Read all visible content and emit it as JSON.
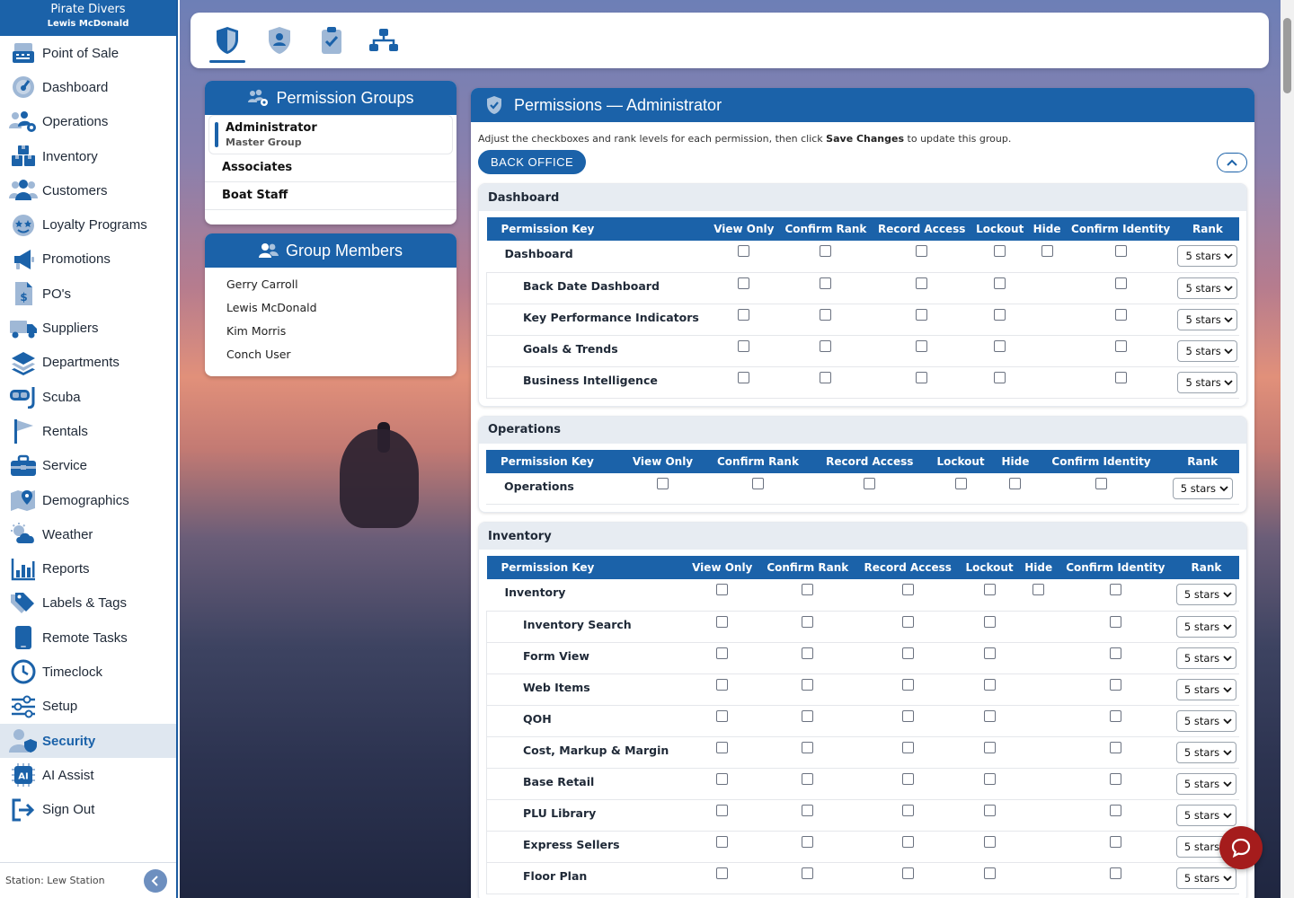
{
  "sidebar": {
    "org": "Pirate Divers",
    "user": "Lewis McDonald",
    "items": [
      {
        "label": "Point of Sale",
        "icon": "register-icon"
      },
      {
        "label": "Dashboard",
        "icon": "gauge-icon"
      },
      {
        "label": "Operations",
        "icon": "team-gear-icon"
      },
      {
        "label": "Inventory",
        "icon": "boxes-icon"
      },
      {
        "label": "Customers",
        "icon": "people-icon"
      },
      {
        "label": "Loyalty Programs",
        "icon": "star-face-icon"
      },
      {
        "label": "Promotions",
        "icon": "megaphone-icon"
      },
      {
        "label": "PO's",
        "icon": "invoice-icon"
      },
      {
        "label": "Suppliers",
        "icon": "truck-icon"
      },
      {
        "label": "Departments",
        "icon": "layers-icon"
      },
      {
        "label": "Scuba",
        "icon": "snorkel-mask-icon"
      },
      {
        "label": "Rentals",
        "icon": "flag-icon"
      },
      {
        "label": "Service",
        "icon": "toolbox-icon"
      },
      {
        "label": "Demographics",
        "icon": "map-pin-icon"
      },
      {
        "label": "Weather",
        "icon": "cloud-sun-icon"
      },
      {
        "label": "Reports",
        "icon": "bar-chart-icon"
      },
      {
        "label": "Labels & Tags",
        "icon": "tag-icon"
      },
      {
        "label": "Remote Tasks",
        "icon": "tablet-icon"
      },
      {
        "label": "Timeclock",
        "icon": "clock-icon"
      },
      {
        "label": "Setup",
        "icon": "sliders-icon"
      },
      {
        "label": "Security",
        "icon": "user-shield-icon",
        "active": true
      },
      {
        "label": "AI Assist",
        "icon": "ai-chip-icon"
      },
      {
        "label": "Sign Out",
        "icon": "sign-out-icon"
      }
    ],
    "station": "Station: Lew Station"
  },
  "tabs": [
    {
      "name": "security-shield-tab",
      "active": true
    },
    {
      "name": "user-shield-tab"
    },
    {
      "name": "clipboard-check-tab"
    },
    {
      "name": "network-tab"
    }
  ],
  "groups_panel": {
    "title": "Permission Groups",
    "groups": [
      {
        "name": "Administrator",
        "sub": "Master Group",
        "selected": true
      },
      {
        "name": "Associates"
      },
      {
        "name": "Boat Staff"
      }
    ]
  },
  "members_panel": {
    "title": "Group Members",
    "members": [
      "Gerry Carroll",
      "Lewis McDonald",
      "Kim Morris",
      "Conch User"
    ]
  },
  "permissions": {
    "title": "Permissions — Administrator",
    "desc_before": "Adjust the checkboxes and rank levels for each permission, then click ",
    "desc_bold": "Save Changes",
    "desc_after": " to update this group.",
    "back_office": "BACK OFFICE",
    "columns": [
      "Permission Key",
      "View Only",
      "Confirm Rank",
      "Record Access",
      "Lockout",
      "Hide",
      "Confirm Identity",
      "Rank"
    ],
    "rank_value": "5 stars",
    "sections": [
      {
        "title": "Dashboard",
        "rows": [
          {
            "key": "Dashboard",
            "parent": true
          },
          {
            "key": "Back Date Dashboard"
          },
          {
            "key": "Key Performance Indicators"
          },
          {
            "key": "Goals & Trends"
          },
          {
            "key": "Business Intelligence"
          }
        ]
      },
      {
        "title": "Operations",
        "rows": [
          {
            "key": "Operations",
            "parent": true
          }
        ]
      },
      {
        "title": "Inventory",
        "rows": [
          {
            "key": "Inventory",
            "parent": true
          },
          {
            "key": "Inventory Search"
          },
          {
            "key": "Form View"
          },
          {
            "key": "Web Items"
          },
          {
            "key": "QOH"
          },
          {
            "key": "Cost, Markup & Margin"
          },
          {
            "key": "Base Retail"
          },
          {
            "key": "PLU Library"
          },
          {
            "key": "Express Sellers"
          },
          {
            "key": "Floor Plan"
          }
        ]
      }
    ]
  },
  "colors": {
    "primary": "#1b62a9",
    "chat": "#a51c1c"
  }
}
